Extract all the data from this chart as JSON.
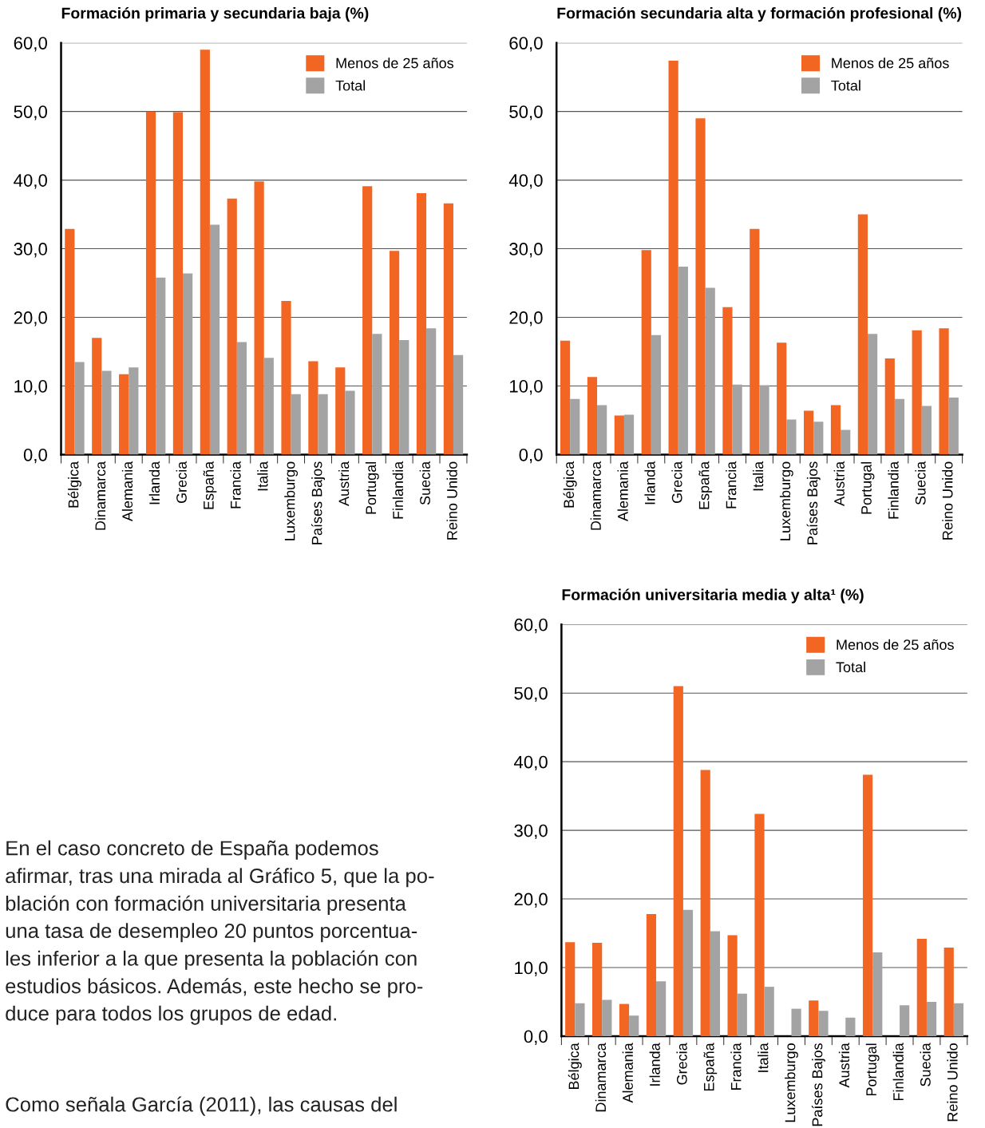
{
  "chart_data": [
    {
      "type": "bar",
      "title": "Formación primaria y secundaria baja (%)",
      "categories": [
        "Bélgica",
        "Dinamarca",
        "Alemania",
        "Irlanda",
        "Grecia",
        "España",
        "Francia",
        "Italia",
        "Luxemburgo",
        "Países Bajos",
        "Austria",
        "Portugal",
        "Finlandia",
        "Suecia",
        "Reino Unido"
      ],
      "series": [
        {
          "name": "Menos de 25 años",
          "color": "#f26522",
          "values": [
            32.9,
            17.0,
            11.7,
            50.0,
            49.9,
            59.0,
            37.3,
            39.8,
            22.4,
            13.6,
            12.7,
            39.1,
            29.7,
            38.1,
            36.6
          ]
        },
        {
          "name": "Total",
          "color": "#a3a3a3",
          "values": [
            13.5,
            12.2,
            12.7,
            25.8,
            26.4,
            33.5,
            16.4,
            14.1,
            8.8,
            8.8,
            9.3,
            17.6,
            16.7,
            18.4,
            14.5
          ]
        }
      ],
      "ylim": [
        0,
        60
      ],
      "yticks": [
        {
          "value": 0,
          "label": "0,0"
        },
        {
          "value": 10,
          "label": "10,0"
        },
        {
          "value": 20,
          "label": "20,0"
        },
        {
          "value": 30,
          "label": "30,0"
        },
        {
          "value": 40,
          "label": "40,0"
        },
        {
          "value": 50,
          "label": "50,0"
        },
        {
          "value": 60,
          "label": "60,0"
        }
      ],
      "grid": "y",
      "legend": "top right",
      "annotations": [
        "En el caso concreto de España podemos\nafirmar, tras una mirada al Gráfico 5, que la po-\nblación con formación universitaria presenta\nuna tasa de desempleo 20 puntos porcentua-\nles inferior a la que presenta la población con\nestudios básicos. Además, este hecho se pro-\nduce para todos los grupos de edad.",
        "Como señala García (2011), las causas del"
      ]
    },
    {
      "type": "bar",
      "title": "Formación secundaria alta y formación profesional (%)",
      "categories": [
        "Bélgica",
        "Dinamarca",
        "Alemania",
        "Irlanda",
        "Grecia",
        "España",
        "Francia",
        "Italia",
        "Luxemburgo",
        "Países Bajos",
        "Austria",
        "Portugal",
        "Finlandia",
        "Suecia",
        "Reino Unido"
      ],
      "series": [
        {
          "name": "Menos de 25 años",
          "color": "#f26522",
          "values": [
            16.6,
            11.3,
            5.7,
            29.8,
            57.4,
            49.0,
            21.5,
            32.9,
            16.3,
            6.4,
            7.2,
            35.0,
            14.0,
            18.1,
            18.4
          ]
        },
        {
          "name": "Total",
          "color": "#a3a3a3",
          "values": [
            8.1,
            7.2,
            5.8,
            17.4,
            27.4,
            24.3,
            10.2,
            10.1,
            5.1,
            4.8,
            3.6,
            17.6,
            8.1,
            7.1,
            8.3
          ]
        }
      ],
      "ylim": [
        0,
        60
      ],
      "yticks": [
        {
          "value": 0,
          "label": "0,0"
        },
        {
          "value": 10,
          "label": "10,0"
        },
        {
          "value": 20,
          "label": "20,0"
        },
        {
          "value": 30,
          "label": "30,0"
        },
        {
          "value": 40,
          "label": "40,0"
        },
        {
          "value": 50,
          "label": "50,0"
        },
        {
          "value": 60,
          "label": "60,0"
        }
      ],
      "grid": "y",
      "legend": "top right"
    },
    {
      "type": "bar",
      "title": "Formación universitaria media y alta¹ (%)",
      "categories": [
        "Bélgica",
        "Dinamarca",
        "Alemania",
        "Irlanda",
        "Grecia",
        "España",
        "Francia",
        "Italia",
        "Luxemburgo",
        "Países Bajos",
        "Austria",
        "Portugal",
        "Finlandia",
        "Suecia",
        "Reino Unido"
      ],
      "series": [
        {
          "name": "Menos de 25 años",
          "color": "#f26522",
          "values": [
            13.7,
            13.6,
            4.7,
            17.8,
            51.0,
            38.8,
            14.7,
            32.4,
            null,
            5.2,
            null,
            38.1,
            null,
            14.2,
            12.9
          ]
        },
        {
          "name": "Total",
          "color": "#a3a3a3",
          "values": [
            4.8,
            5.3,
            3.0,
            8.0,
            18.4,
            15.3,
            6.2,
            7.2,
            4.0,
            3.7,
            2.7,
            12.2,
            4.5,
            5.0,
            4.8
          ]
        }
      ],
      "ylim": [
        0,
        60
      ],
      "yticks": [
        {
          "value": 0,
          "label": "0,0"
        },
        {
          "value": 10,
          "label": "10,0"
        },
        {
          "value": 20,
          "label": "20,0"
        },
        {
          "value": 30,
          "label": "30,0"
        },
        {
          "value": 40,
          "label": "40,0"
        },
        {
          "value": 50,
          "label": "50,0"
        },
        {
          "value": 60,
          "label": "60,0"
        }
      ],
      "grid": "y",
      "legend": "top right"
    }
  ]
}
